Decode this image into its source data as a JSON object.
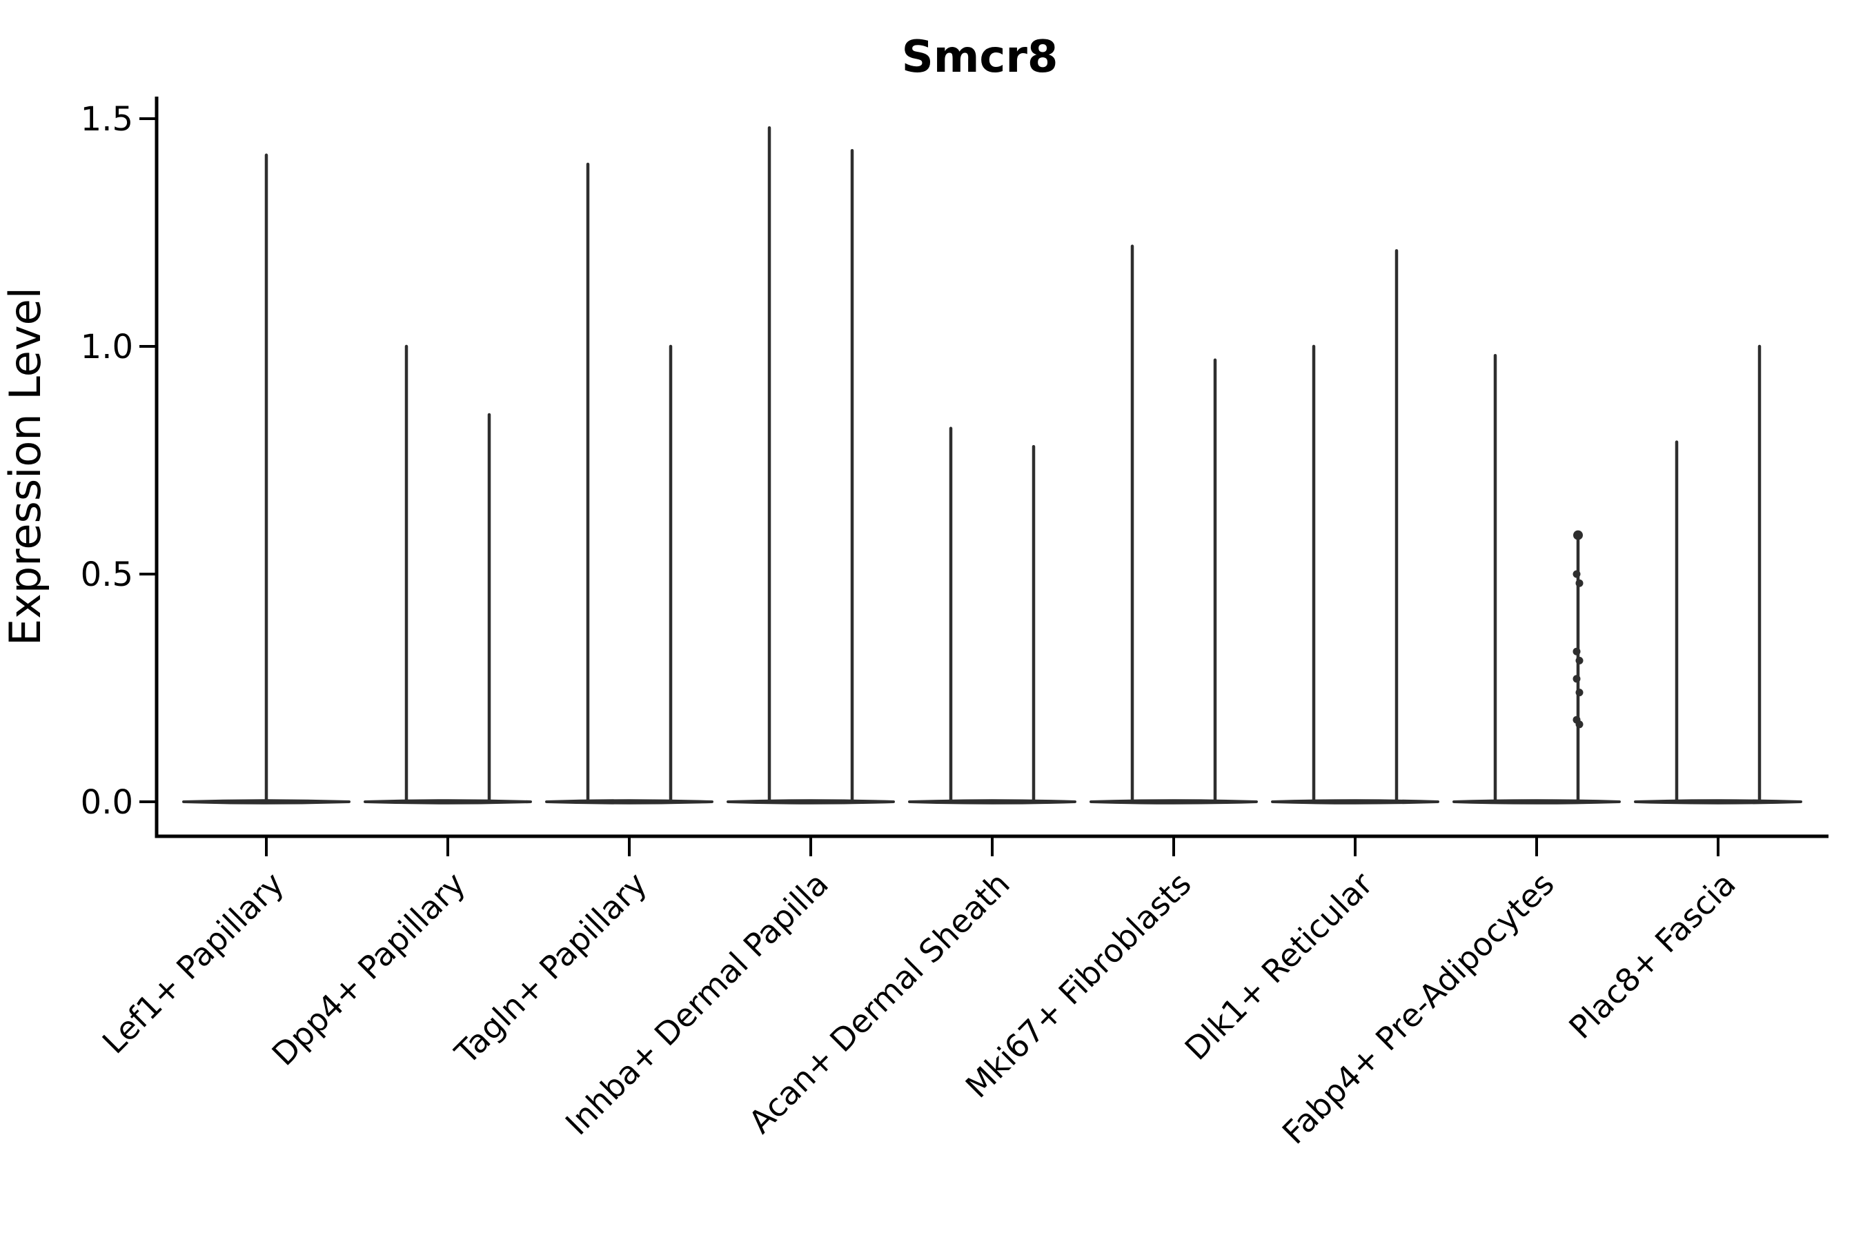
{
  "title": "Smcr8",
  "y_axis": {
    "label": "Expression Level",
    "ticks": [
      {
        "value": 0.0,
        "label": "0.0"
      },
      {
        "value": 0.5,
        "label": "0.5"
      },
      {
        "value": 1.0,
        "label": "1.0"
      },
      {
        "value": 1.5,
        "label": "1.5"
      }
    ]
  },
  "x_axis": {
    "categories": [
      "Lef1+ Papillary",
      "Dpp4+ Papillary",
      "Tagln+ Papillary",
      "Inhba+ Dermal Papilla",
      "Acan+ Dermal Sheath",
      "Mki67+ Fibroblasts",
      "Dlk1+ Reticular",
      "Fabp4+ Pre-Adipocytes",
      "Plac8+ Fascia"
    ]
  },
  "chart_data": {
    "type": "violin",
    "title": "Smcr8",
    "xlabel": "",
    "ylabel": "Expression Level",
    "ylim": [
      0,
      1.5
    ],
    "yticks": [
      0.0,
      0.5,
      1.0,
      1.5
    ],
    "grid": false,
    "legend": "none",
    "categories": [
      "Lef1+ Papillary",
      "Dpp4+ Papillary",
      "Tagln+ Papillary",
      "Inhba+ Dermal Papilla",
      "Acan+ Dermal Sheath",
      "Mki67+ Fibroblasts",
      "Dlk1+ Reticular",
      "Fabp4+ Pre-Adipocytes",
      "Plac8+ Fascia"
    ],
    "violins": [
      {
        "category": "Lef1+ Papillary",
        "base_value": 0,
        "spikes": [
          {
            "pos": "center",
            "max": 1.42
          }
        ]
      },
      {
        "category": "Dpp4+ Papillary",
        "base_value": 0,
        "spikes": [
          {
            "pos": "left",
            "max": 1.0
          },
          {
            "pos": "right",
            "max": 0.85
          }
        ]
      },
      {
        "category": "Tagln+ Papillary",
        "base_value": 0,
        "spikes": [
          {
            "pos": "left",
            "max": 1.4
          },
          {
            "pos": "right",
            "max": 1.0
          }
        ]
      },
      {
        "category": "Inhba+ Dermal Papilla",
        "base_value": 0,
        "spikes": [
          {
            "pos": "left",
            "max": 1.48
          },
          {
            "pos": "right",
            "max": 1.43
          }
        ]
      },
      {
        "category": "Acan+ Dermal Sheath",
        "base_value": 0,
        "spikes": [
          {
            "pos": "left",
            "max": 0.82
          },
          {
            "pos": "right",
            "max": 0.78
          }
        ]
      },
      {
        "category": "Mki67+ Fibroblasts",
        "base_value": 0,
        "spikes": [
          {
            "pos": "left",
            "max": 1.22
          },
          {
            "pos": "right",
            "max": 0.97
          }
        ]
      },
      {
        "category": "Dlk1+ Reticular",
        "base_value": 0,
        "spikes": [
          {
            "pos": "left",
            "max": 1.0
          },
          {
            "pos": "right",
            "max": 1.21
          }
        ]
      },
      {
        "category": "Fabp4+ Pre-Adipocytes",
        "base_value": 0,
        "spikes": [
          {
            "pos": "left",
            "max": 0.98
          },
          {
            "pos": "right",
            "max": 0.59,
            "cap": true,
            "points": [
              0.5,
              0.48,
              0.33,
              0.31,
              0.27,
              0.24,
              0.18,
              0.17
            ]
          }
        ]
      },
      {
        "category": "Plac8+ Fascia",
        "base_value": 0,
        "spikes": [
          {
            "pos": "left",
            "max": 0.79
          },
          {
            "pos": "right",
            "max": 1.0
          }
        ]
      }
    ],
    "notes": "violins collapsed to a flat lens at 0; thin vertical spikes mark sparse nonzero expression tails"
  },
  "style": {
    "ink": "#2e2e2e",
    "axis_color": "#000000",
    "background": "#ffffff"
  }
}
